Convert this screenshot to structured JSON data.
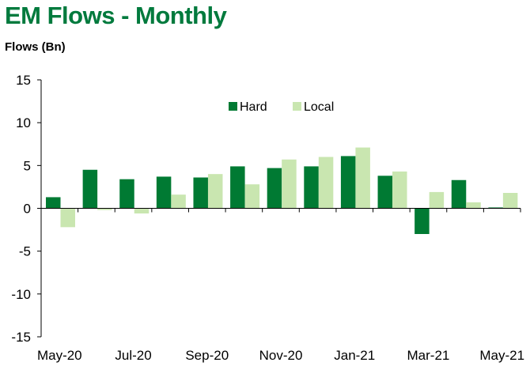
{
  "title": "EM Flows - Monthly",
  "units_label": "Flows (Bn)",
  "colors": {
    "hard": "#007a33",
    "local": "#c9e6b0",
    "axis": "#000000"
  },
  "chart_data": {
    "type": "bar",
    "title": "EM Flows - Monthly",
    "xlabel": "",
    "ylabel": "Flows (Bn)",
    "ylim": [
      -15,
      15
    ],
    "yticks": [
      15,
      10,
      5,
      0,
      -5,
      -10,
      -15
    ],
    "grid": false,
    "legend_position": "top-center",
    "categories": [
      "May-20",
      "Jun-20",
      "Jul-20",
      "Aug-20",
      "Sep-20",
      "Oct-20",
      "Nov-20",
      "Dec-20",
      "Jan-21",
      "Feb-21",
      "Mar-21",
      "Apr-21",
      "May-21"
    ],
    "tick_labels": [
      "May-20",
      "",
      "Jul-20",
      "",
      "Sep-20",
      "",
      "Nov-20",
      "",
      "Jan-21",
      "",
      "Mar-21",
      "",
      "May-21"
    ],
    "series": [
      {
        "name": "Hard",
        "key": "hard",
        "values": [
          1.3,
          4.5,
          3.4,
          3.7,
          3.6,
          4.9,
          4.7,
          4.9,
          6.1,
          3.8,
          -3.0,
          3.3,
          0.1
        ]
      },
      {
        "name": "Local",
        "key": "local",
        "values": [
          -2.2,
          -0.2,
          -0.6,
          1.6,
          4.0,
          2.8,
          5.7,
          6.0,
          7.1,
          4.3,
          1.9,
          0.7,
          1.8
        ]
      }
    ]
  }
}
